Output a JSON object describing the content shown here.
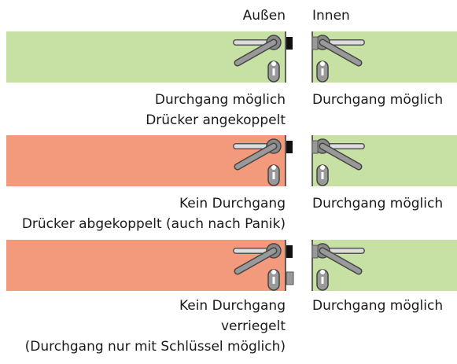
{
  "header": {
    "outside": "Außen",
    "inside": "Innen"
  },
  "rows": [
    {
      "left_color": "#c6e1a3",
      "right_color": "#c6e1a3",
      "left_label": [
        "Durchgang möglich",
        "Drücker angekoppelt"
      ],
      "right_label": "Durchgang möglich"
    },
    {
      "left_color": "#f39a7d",
      "right_color": "#c6e1a3",
      "left_label": [
        "Kein Durchgang",
        "Drücker abgekoppelt (auch nach Panik)"
      ],
      "right_label": "Durchgang möglich"
    },
    {
      "left_color": "#f39a7d",
      "right_color": "#c6e1a3",
      "left_label": [
        "Kein Durchgang",
        "verriegelt",
        "(Durchgang nur mit Schlüssel möglich)"
      ],
      "right_label": "Durchgang möglich"
    }
  ]
}
